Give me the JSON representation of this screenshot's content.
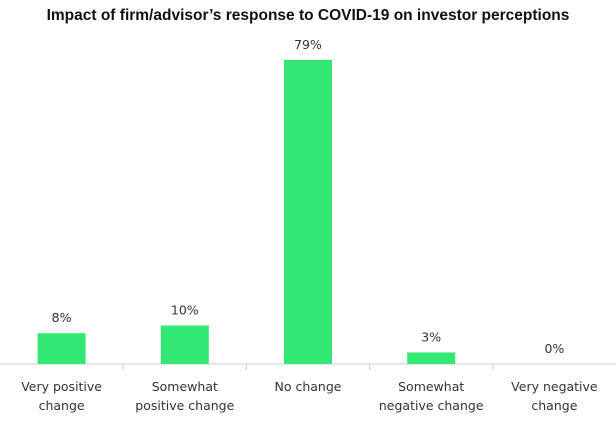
{
  "chart_data": {
    "type": "bar",
    "title": "Impact of firm/advisor’s response to COVID-19 on investor perceptions",
    "categories": [
      [
        "Very positive",
        "change"
      ],
      [
        "Somewhat",
        "positive change"
      ],
      [
        "No change"
      ],
      [
        "Somewhat",
        "negative change"
      ],
      [
        "Very negative",
        "change"
      ]
    ],
    "values": [
      8,
      10,
      79,
      3,
      0
    ],
    "value_labels": [
      "8%",
      "10%",
      "79%",
      "3%",
      "0%"
    ],
    "xlabel": "",
    "ylabel": "",
    "ylim": [
      0,
      79
    ],
    "grid": false,
    "legend": "none",
    "bar_color": "#33e872",
    "axis_color": "#cfcfcf"
  }
}
